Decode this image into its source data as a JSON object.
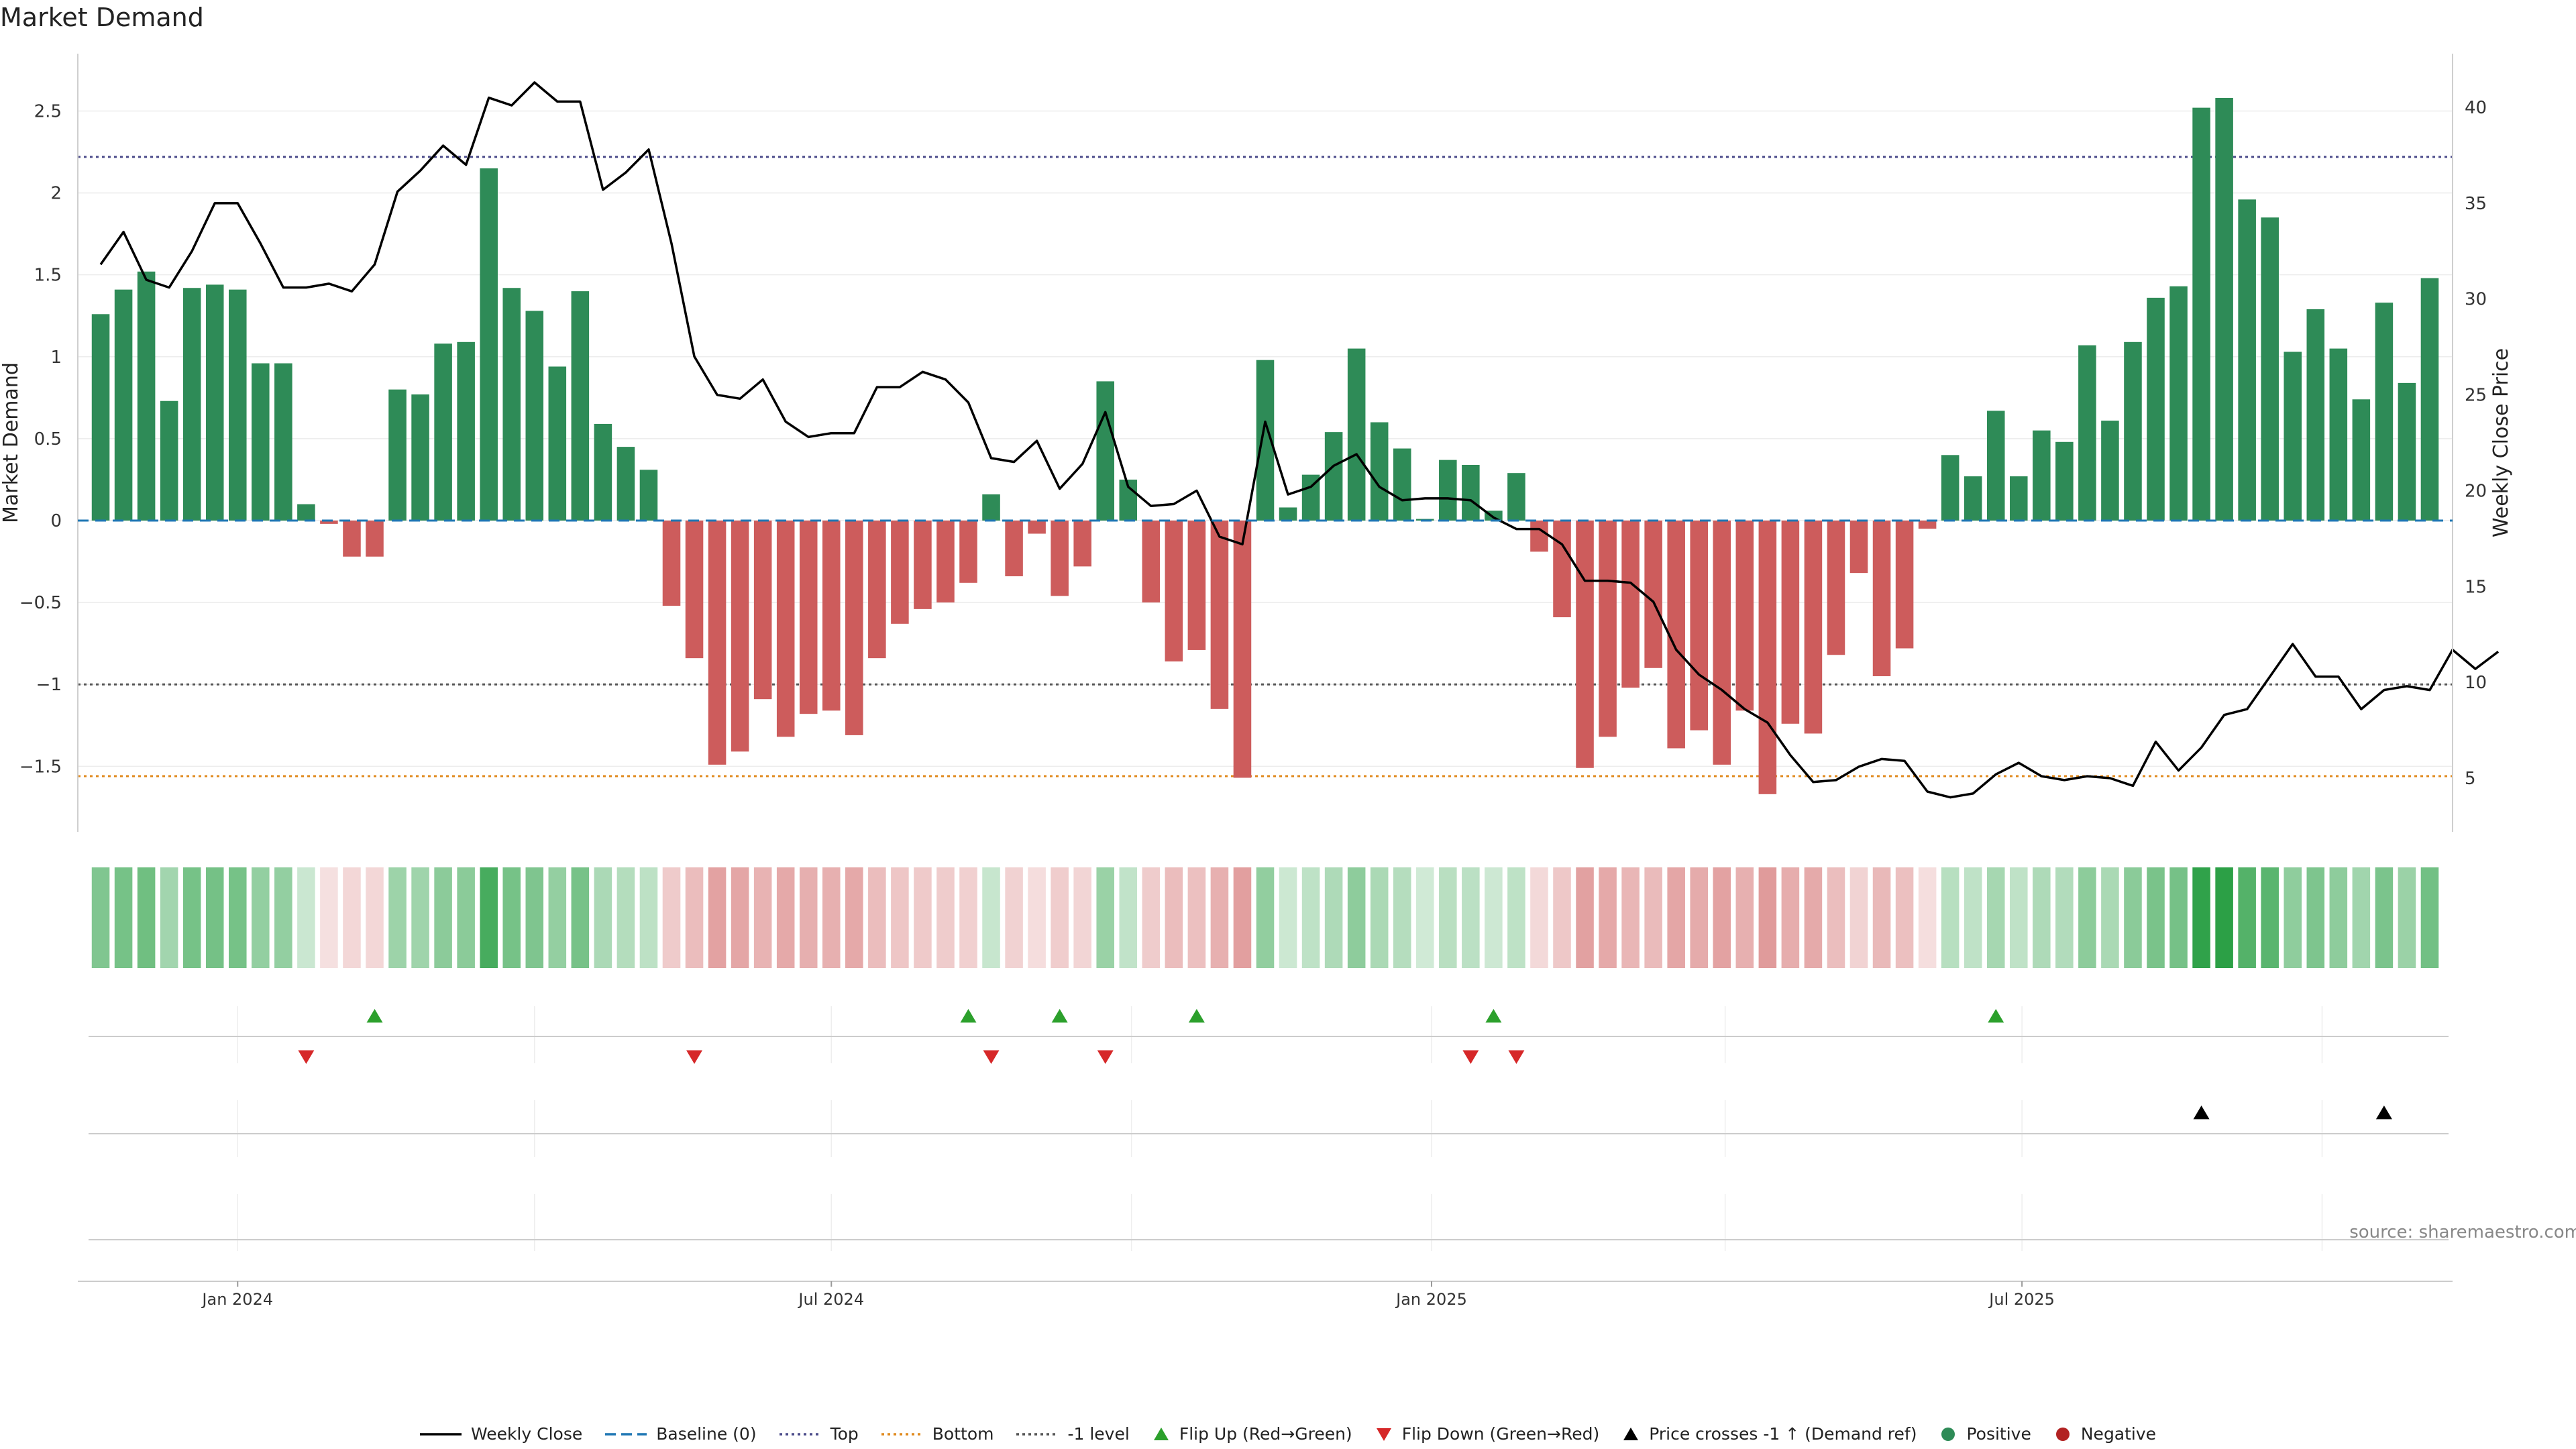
{
  "title": "Market Demand",
  "source": "source: sharemaestro.com",
  "colors": {
    "positive": "#2e8b57",
    "negative": "#cd5c5c",
    "price": "#000000",
    "baseline": "#1f77b4",
    "top": "#4b4b8a",
    "bottom": "#e08a1e",
    "level": "#555555",
    "flip_up": "#2ca02c",
    "flip_down": "#d62728"
  },
  "legend": [
    {
      "label": "Weekly Close",
      "icon": "solid-line",
      "color": "#000000"
    },
    {
      "label": "Baseline (0)",
      "icon": "dashed-line",
      "color": "#1f77b4"
    },
    {
      "label": "Top",
      "icon": "dotted-line",
      "color": "#4b4b8a"
    },
    {
      "label": "Bottom",
      "icon": "dotted-line",
      "color": "#e08a1e"
    },
    {
      "label": "-1 level",
      "icon": "dotted-line",
      "color": "#555555"
    },
    {
      "label": "Flip Up (Red→Green)",
      "icon": "triangle-up",
      "color": "#2ca02c"
    },
    {
      "label": "Flip Down (Green→Red)",
      "icon": "triangle-down",
      "color": "#d62728"
    },
    {
      "label": "Price crosses -1 ↑ (Demand ref)",
      "icon": "triangle-up",
      "color": "#000000"
    },
    {
      "label": "Positive",
      "icon": "circle",
      "color": "#2e8b57"
    },
    {
      "label": "Negative",
      "icon": "circle",
      "color": "#b22222"
    }
  ],
  "chart_data": {
    "type": "bar",
    "ylabel": "Market Demand",
    "y2label": "Weekly Close Price",
    "ylim": [
      -1.9,
      2.85
    ],
    "y2lim": [
      2.2,
      42.8
    ],
    "yticks": [
      -1.5,
      -1,
      -0.5,
      0,
      0.5,
      1,
      1.5,
      2,
      2.5
    ],
    "y2ticks": [
      5,
      10,
      15,
      20,
      25,
      30,
      35,
      40
    ],
    "x_start": "2023-11-20",
    "x_range": [
      "2023-11-13",
      "2025-11-10"
    ],
    "xticks": [
      {
        "date": "2024-01-01",
        "label": "Jan 2024"
      },
      {
        "date": "2024-07-01",
        "label": "Jul 2024"
      },
      {
        "date": "2025-01-01",
        "label": "Jan 2025"
      },
      {
        "date": "2025-07-01",
        "label": "Jul 2025"
      }
    ],
    "reference_lines": {
      "baseline": 0,
      "top": 2.22,
      "bottom": -1.56,
      "minus_one": -1
    },
    "grid": true,
    "series": [
      {
        "name": "Market Demand",
        "type": "bar",
        "values": [
          1.26,
          1.41,
          1.52,
          0.73,
          1.42,
          1.44,
          1.41,
          0.96,
          0.96,
          0.1,
          -0.02,
          -0.22,
          -0.22,
          0.8,
          0.77,
          1.08,
          1.09,
          2.15,
          1.42,
          1.28,
          0.94,
          1.4,
          0.59,
          0.45,
          0.31,
          -0.52,
          -0.84,
          -1.49,
          -1.41,
          -1.09,
          -1.32,
          -1.18,
          -1.16,
          -1.31,
          -0.84,
          -0.63,
          -0.54,
          -0.5,
          -0.38,
          0.16,
          -0.34,
          -0.08,
          -0.46,
          -0.28,
          0.85,
          0.25,
          -0.5,
          -0.86,
          -0.79,
          -1.15,
          -1.57,
          0.98,
          0.08,
          0.28,
          0.54,
          1.05,
          0.6,
          0.44,
          0.01,
          0.37,
          0.34,
          0.06,
          0.29,
          -0.19,
          -0.59,
          -1.51,
          -1.32,
          -1.02,
          -0.9,
          -1.39,
          -1.28,
          -1.49,
          -1.16,
          -1.67,
          -1.24,
          -1.3,
          -0.82,
          -0.32,
          -0.95,
          -0.78,
          -0.05,
          0.4,
          0.27,
          0.67,
          0.27,
          0.55,
          0.48,
          1.07,
          0.61,
          1.09,
          1.36,
          1.43,
          2.52,
          2.58,
          1.96,
          1.85,
          1.03,
          1.29,
          1.05,
          0.74,
          1.33,
          0.84,
          1.48
        ]
      },
      {
        "name": "Weekly Close",
        "type": "line",
        "axis": "right",
        "values": [
          31.8,
          33.5,
          31.0,
          30.6,
          32.5,
          35.0,
          35.0,
          32.9,
          30.6,
          30.6,
          30.8,
          30.4,
          31.8,
          35.6,
          36.7,
          38.0,
          37.0,
          40.5,
          40.1,
          41.3,
          40.3,
          40.3,
          35.7,
          36.6,
          37.8,
          32.9,
          27.0,
          25.0,
          24.8,
          25.8,
          23.6,
          22.8,
          23.0,
          23.0,
          25.4,
          25.4,
          26.2,
          25.8,
          24.6,
          21.7,
          21.5,
          22.6,
          20.1,
          21.4,
          24.1,
          20.2,
          19.2,
          19.3,
          20.0,
          17.6,
          17.2,
          23.6,
          19.8,
          20.2,
          21.3,
          21.9,
          20.2,
          19.5,
          19.6,
          19.6,
          19.5,
          18.6,
          18.0,
          18.0,
          17.2,
          15.3,
          15.3,
          15.2,
          14.2,
          11.7,
          10.4,
          9.6,
          8.6,
          7.9,
          6.2,
          4.8,
          4.9,
          5.6,
          6.0,
          5.9,
          4.3,
          4.0,
          4.2,
          5.2,
          5.8,
          5.1,
          4.9,
          5.1,
          5.0,
          4.6,
          6.9,
          5.4,
          6.6,
          8.3,
          8.6,
          10.3,
          12.0,
          10.3,
          10.3,
          8.6,
          9.6,
          9.8,
          9.6,
          11.7,
          10.7,
          11.6
        ]
      }
    ],
    "heat_strip": {
      "values": [
        1.26,
        1.41,
        1.52,
        0.73,
        1.42,
        1.44,
        1.41,
        0.96,
        0.96,
        0.1,
        -0.02,
        -0.22,
        -0.22,
        0.8,
        0.77,
        1.08,
        1.09,
        2.15,
        1.42,
        1.28,
        0.94,
        1.4,
        0.59,
        0.45,
        0.31,
        -0.52,
        -0.84,
        -1.49,
        -1.41,
        -1.09,
        -1.32,
        -1.18,
        -1.16,
        -1.31,
        -0.84,
        -0.63,
        -0.54,
        -0.5,
        -0.38,
        0.16,
        -0.34,
        -0.08,
        -0.46,
        -0.28,
        0.85,
        0.25,
        -0.5,
        -0.86,
        -0.79,
        -1.15,
        -1.57,
        0.98,
        0.08,
        0.28,
        0.54,
        1.05,
        0.6,
        0.44,
        0.01,
        0.37,
        0.34,
        0.06,
        0.29,
        -0.19,
        -0.59,
        -1.51,
        -1.32,
        -1.02,
        -0.9,
        -1.39,
        -1.28,
        -1.49,
        -1.16,
        -1.67,
        -1.24,
        -1.3,
        -0.82,
        -0.32,
        -0.95,
        -0.78,
        -0.05,
        0.4,
        0.27,
        0.67,
        0.27,
        0.55,
        0.48,
        1.07,
        0.61,
        1.09,
        1.36,
        1.43,
        2.52,
        2.58,
        1.96,
        1.85,
        1.03,
        1.29,
        1.05,
        0.74,
        1.33,
        0.84,
        1.48
      ]
    },
    "events": {
      "flip_up": [
        "2024-02-12",
        "2024-08-12",
        "2024-09-09",
        "2024-10-21",
        "2025-01-20",
        "2025-06-23"
      ],
      "flip_down": [
        "2024-01-22",
        "2024-05-20",
        "2024-08-19",
        "2024-09-23",
        "2025-01-13",
        "2025-01-27"
      ],
      "price_cross_up": [
        "2025-08-25",
        "2025-10-20"
      ]
    }
  }
}
